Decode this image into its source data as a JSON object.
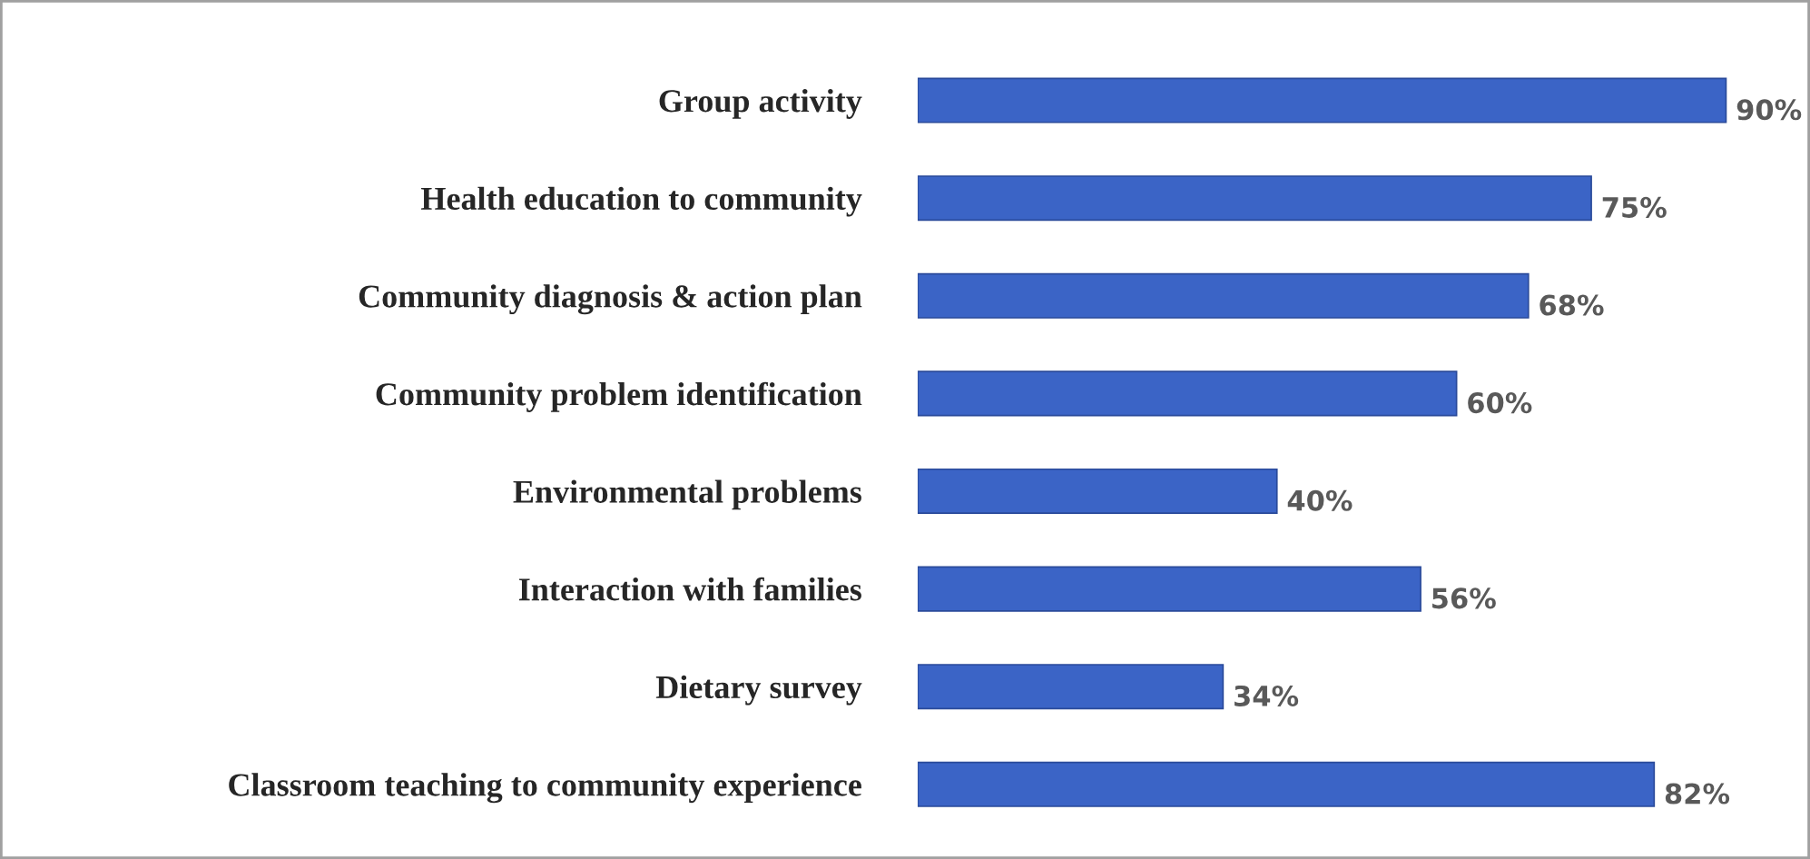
{
  "chart_data": {
    "type": "bar",
    "orientation": "horizontal",
    "categories": [
      "Group activity",
      "Health education to community",
      "Community diagnosis & action plan",
      "Community problem identification",
      "Environmental problems",
      "Interaction with families",
      "Dietary survey",
      "Classroom teaching to community experience"
    ],
    "values": [
      90,
      75,
      68,
      60,
      40,
      56,
      34,
      82
    ],
    "value_labels": [
      "90%",
      "75%",
      "68%",
      "60%",
      "40%",
      "56%",
      "34%",
      "82%"
    ],
    "color": "#3b64c6",
    "grid": false,
    "legend": false,
    "tick_labels": "y"
  }
}
